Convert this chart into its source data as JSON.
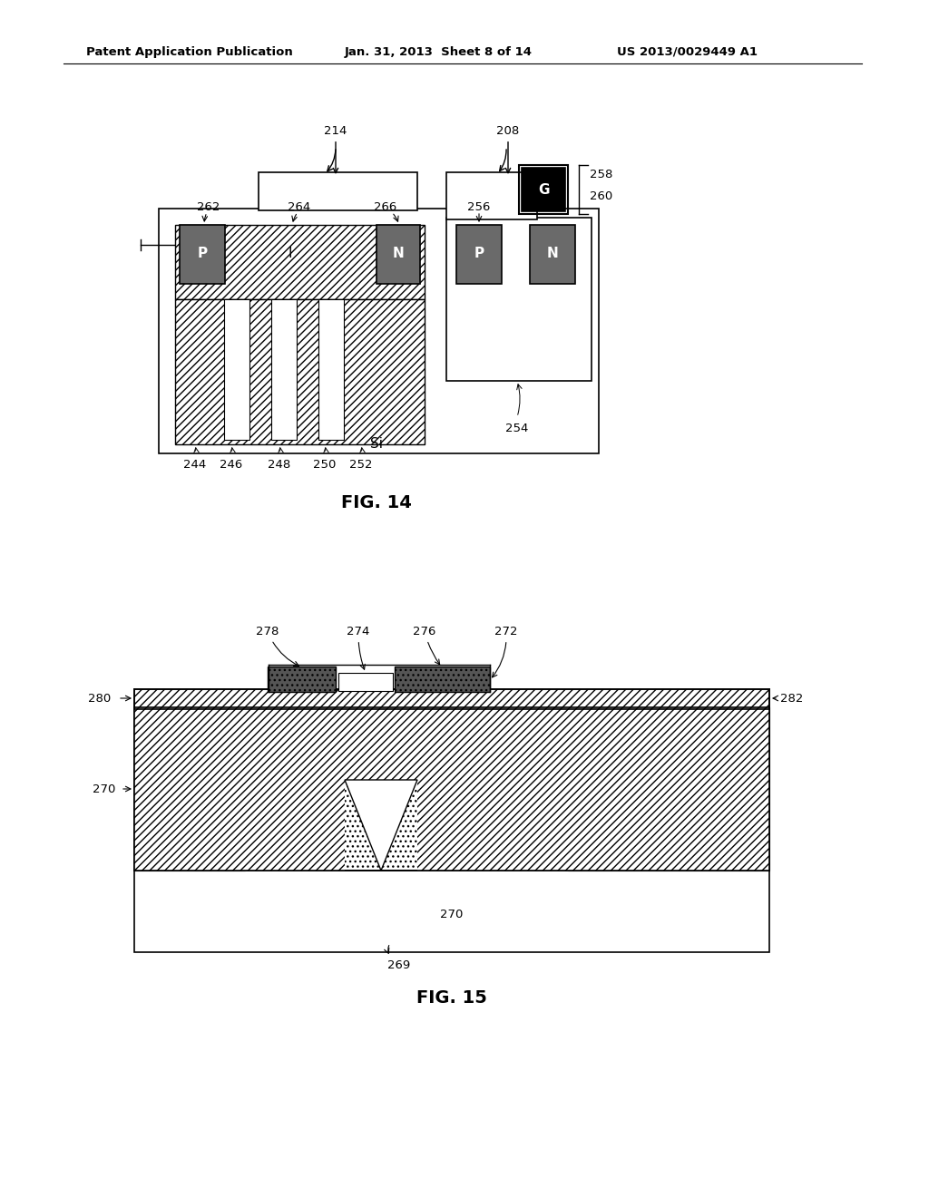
{
  "header_left": "Patent Application Publication",
  "header_middle": "Jan. 31, 2013  Sheet 8 of 14",
  "header_right": "US 2013/0029449 A1",
  "fig14_label": "FIG. 14",
  "fig15_label": "FIG. 15",
  "bg_color": "#ffffff"
}
